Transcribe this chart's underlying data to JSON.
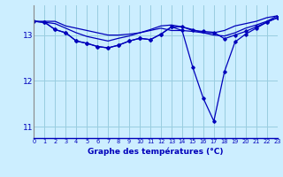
{
  "title": "Graphe des températures (°C)",
  "background_color": "#cceeff",
  "grid_color": "#99cce0",
  "line_color": "#0000bb",
  "axis_label_color": "#0000bb",
  "x_ticks": [
    0,
    1,
    2,
    3,
    4,
    5,
    6,
    7,
    8,
    9,
    10,
    11,
    12,
    13,
    14,
    15,
    16,
    17,
    18,
    19,
    20,
    21,
    22,
    23
  ],
  "xlim": [
    0,
    23
  ],
  "ylim": [
    10.75,
    13.65
  ],
  "yticks": [
    11,
    12,
    13
  ],
  "series": [
    {
      "y": [
        13.3,
        13.3,
        13.3,
        13.2,
        13.15,
        13.1,
        13.05,
        13.0,
        13.0,
        13.02,
        13.05,
        13.1,
        13.15,
        13.1,
        13.1,
        13.08,
        13.05,
        13.05,
        13.1,
        13.2,
        13.25,
        13.3,
        13.38,
        13.42
      ],
      "marker": false
    },
    {
      "y": [
        13.3,
        13.28,
        13.25,
        13.15,
        13.05,
        12.97,
        12.92,
        12.87,
        12.93,
        12.98,
        13.05,
        13.12,
        13.2,
        13.22,
        13.18,
        13.12,
        13.05,
        13.0,
        12.98,
        13.05,
        13.15,
        13.22,
        13.3,
        13.42
      ],
      "marker": false
    },
    {
      "y": [
        13.3,
        13.28,
        13.12,
        13.05,
        12.87,
        12.82,
        12.75,
        12.72,
        12.78,
        12.87,
        12.93,
        12.9,
        13.02,
        13.18,
        13.18,
        13.1,
        13.08,
        13.06,
        12.92,
        13.0,
        13.08,
        13.18,
        13.28,
        13.38
      ],
      "marker": true
    },
    {
      "y": [
        13.3,
        13.28,
        13.12,
        13.05,
        12.87,
        12.82,
        12.75,
        12.72,
        12.78,
        12.87,
        12.93,
        12.9,
        13.02,
        13.18,
        13.1,
        12.3,
        11.62,
        11.12,
        12.2,
        12.85,
        13.02,
        13.15,
        13.28,
        13.38
      ],
      "marker": true
    }
  ]
}
